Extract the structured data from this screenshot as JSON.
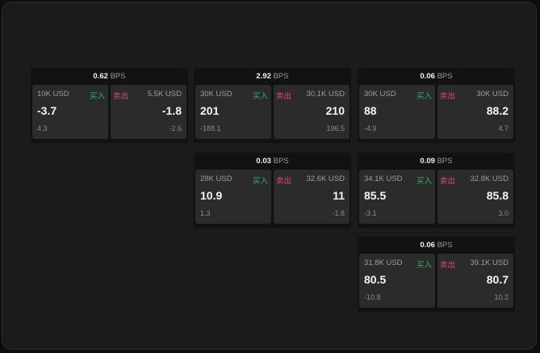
{
  "unit": "BPS",
  "buy_label": "买入",
  "sell_label": "卖出",
  "colors": {
    "buy": "#2fb36a",
    "sell": "#e0457b"
  },
  "quotes": [
    {
      "spread": "0.62",
      "bid_size": "10K USD",
      "bid": "-3.7",
      "bid_change": "4.3",
      "ask_size": "5.5K USD",
      "ask": "-1.8",
      "ask_change": "-2.6"
    },
    {
      "spread": "2.92",
      "bid_size": "30K USD",
      "bid": "201",
      "bid_change": "-188.1",
      "ask_size": "30.1K USD",
      "ask": "210",
      "ask_change": "196.5"
    },
    {
      "spread": "0.06",
      "bid_size": "30K USD",
      "bid": "88",
      "bid_change": "-4.9",
      "ask_size": "30K USD",
      "ask": "88.2",
      "ask_change": "4.7"
    },
    {
      "spread": "0.03",
      "bid_size": "28K USD",
      "bid": "10.9",
      "bid_change": "1.3",
      "ask_size": "32.6K USD",
      "ask": "11",
      "ask_change": "-1.8"
    },
    {
      "spread": "0.09",
      "bid_size": "34.1K USD",
      "bid": "85.5",
      "bid_change": "-3.1",
      "ask_size": "32.8K USD",
      "ask": "85.8",
      "ask_change": "3.0"
    },
    {
      "spread": "0.06",
      "bid_size": "31.8K USD",
      "bid": "80.5",
      "bid_change": "-10.8",
      "ask_size": "39.1K USD",
      "ask": "80.7",
      "ask_change": "10.2"
    }
  ]
}
